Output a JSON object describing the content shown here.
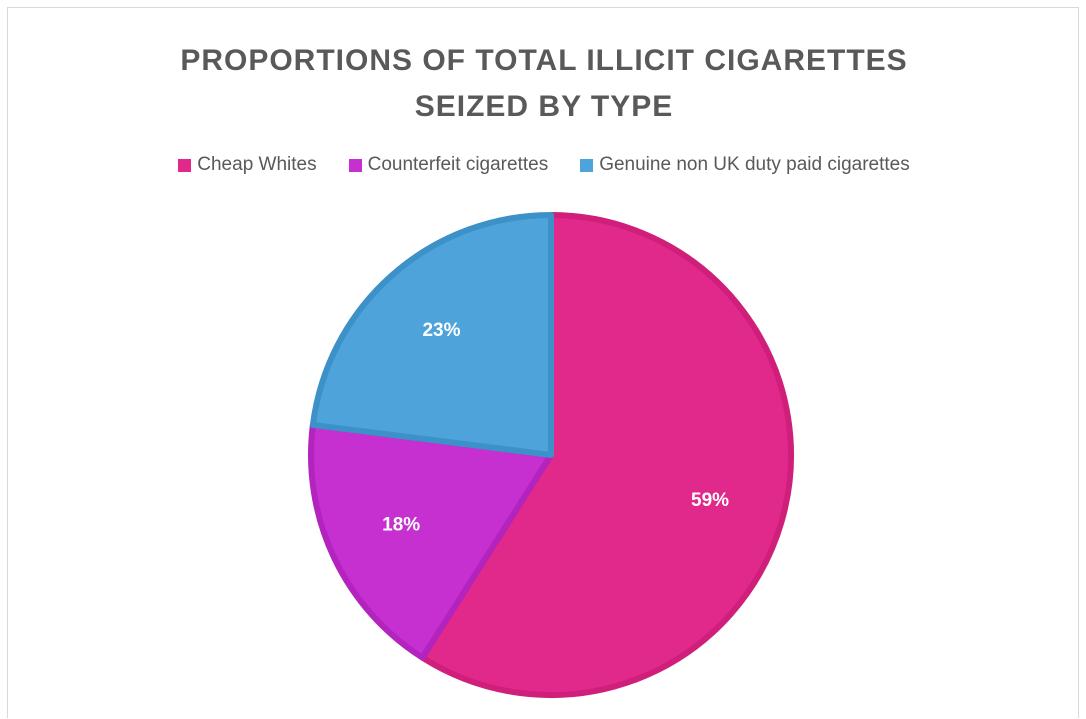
{
  "chart_data": {
    "type": "pie",
    "title": "PROPORTIONS OF TOTAL ILLICIT CIGARETTES SEIZED BY TYPE",
    "title_lines": [
      "PROPORTIONS OF TOTAL ILLICIT CIGARETTES",
      "SEIZED BY TYPE"
    ],
    "legend_position": "top",
    "categories": [
      "Cheap Whites",
      "Counterfeit cigarettes",
      "Genuine non UK duty paid cigarettes"
    ],
    "values": [
      59,
      18,
      23
    ],
    "labels": [
      "59%",
      "18%",
      "23%"
    ],
    "colors": [
      "#e0298a",
      "#c62fd0",
      "#4ea3da"
    ],
    "edge_colors": [
      "#cf1f7b",
      "#b224bd",
      "#3d91c9"
    ]
  }
}
